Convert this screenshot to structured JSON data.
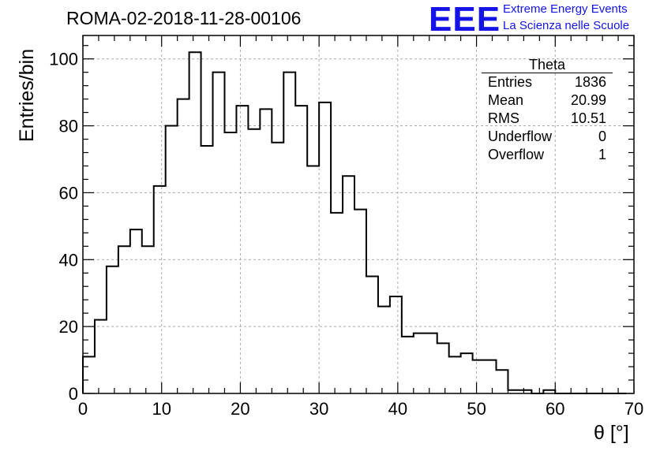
{
  "header": {
    "title": "ROMA-02-2018-11-28-00106",
    "logo_mark": "EEE",
    "logo_line1": "Extreme Energy Events",
    "logo_line2": "La Scienza nelle Scuole",
    "logo_color": "#1414e6"
  },
  "stats_box": {
    "title": "Theta",
    "rows": [
      {
        "label": "Entries",
        "value": "1836"
      },
      {
        "label": "Mean",
        "value": "20.99"
      },
      {
        "label": "RMS",
        "value": "10.51"
      },
      {
        "label": "Underflow",
        "value": "0"
      },
      {
        "label": "Overflow",
        "value": "1"
      }
    ]
  },
  "chart_data": {
    "type": "bar",
    "title": "ROMA-02-2018-11-28-00106",
    "xlabel": "θ [°]",
    "ylabel": "Entries/bin",
    "xlim": [
      0,
      70
    ],
    "ylim": [
      0,
      107
    ],
    "x_ticks": [
      "0",
      "10",
      "20",
      "30",
      "40",
      "50",
      "60",
      "70"
    ],
    "y_ticks": [
      "0",
      "20",
      "40",
      "60",
      "80",
      "100"
    ],
    "grid": true,
    "histogram_style": "step",
    "bin_width": 1.5,
    "x_start": 0,
    "values": [
      11,
      22,
      38,
      44,
      49,
      44,
      62,
      80,
      88,
      102,
      74,
      96,
      78,
      86,
      79,
      85,
      75,
      96,
      86,
      68,
      87,
      54,
      65,
      55,
      35,
      26,
      29,
      17,
      18,
      18,
      15,
      11,
      12,
      10,
      10,
      7,
      1,
      1,
      0,
      1,
      0,
      0,
      0,
      0,
      0,
      0
    ]
  }
}
